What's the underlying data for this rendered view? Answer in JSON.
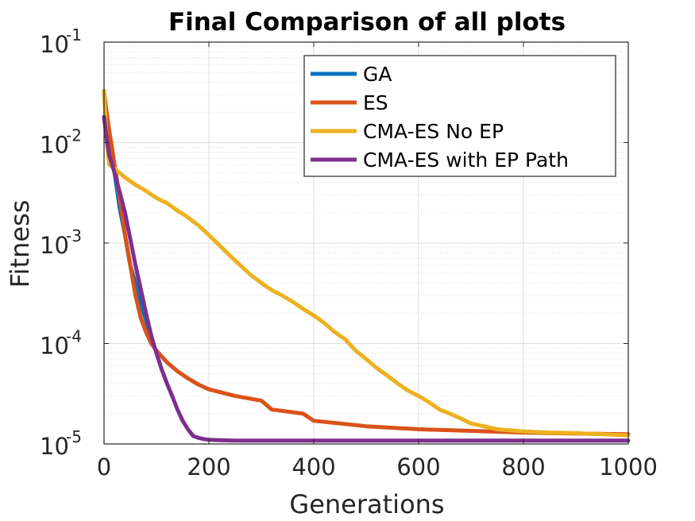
{
  "chart_data": {
    "type": "line",
    "title": "Final Comparison of all plots",
    "xlabel": "Generations",
    "ylabel": "Fitness",
    "xlim": [
      0,
      1000
    ],
    "ylim": [
      1e-05,
      0.1
    ],
    "yscale": "log",
    "grid": true,
    "minor_grid": true,
    "legend_position": "top-right",
    "x_ticks": [
      0,
      200,
      400,
      600,
      800,
      1000
    ],
    "x_tick_labels": [
      "0",
      "200",
      "400",
      "600",
      "800",
      "1000"
    ],
    "y_ticks": [
      1e-05,
      0.0001,
      0.001,
      0.01,
      0.1
    ],
    "y_tick_labels": [
      {
        "base": "10",
        "exp": "-5"
      },
      {
        "base": "10",
        "exp": "-4"
      },
      {
        "base": "10",
        "exp": "-3"
      },
      {
        "base": "10",
        "exp": "-2"
      },
      {
        "base": "10",
        "exp": "-1"
      }
    ],
    "series": [
      {
        "name": "GA",
        "color": "#0072BD",
        "x": [
          0,
          5,
          10,
          20,
          30,
          40,
          50,
          60,
          70,
          80,
          85,
          90,
          92
        ],
        "y": [
          0.03,
          0.018,
          0.008,
          0.005,
          0.0022,
          0.0012,
          0.0006,
          0.0004,
          0.00025,
          0.00017,
          0.00014,
          0.00012,
          0.00011
        ]
      },
      {
        "name": "ES",
        "color": "#D95319",
        "x": [
          0,
          5,
          10,
          15,
          20,
          30,
          40,
          50,
          60,
          70,
          80,
          90,
          100,
          120,
          140,
          160,
          180,
          200,
          250,
          300,
          320,
          350,
          380,
          400,
          450,
          500,
          550,
          600,
          700,
          800,
          900,
          1000
        ],
        "y": [
          0.032,
          0.02,
          0.013,
          0.009,
          0.006,
          0.0028,
          0.0012,
          0.0006,
          0.0003,
          0.00018,
          0.00013,
          0.0001,
          8.5e-05,
          6.5e-05,
          5.3e-05,
          4.5e-05,
          3.9e-05,
          3.5e-05,
          3e-05,
          2.7e-05,
          2.2e-05,
          2.1e-05,
          2e-05,
          1.7e-05,
          1.6e-05,
          1.5e-05,
          1.45e-05,
          1.4e-05,
          1.35e-05,
          1.3e-05,
          1.27e-05,
          1.25e-05
        ]
      },
      {
        "name": "CMA-ES No EP",
        "color": "#EDB120",
        "x": [
          0,
          3,
          6,
          10,
          20,
          40,
          60,
          80,
          100,
          120,
          140,
          160,
          180,
          200,
          220,
          240,
          260,
          280,
          300,
          320,
          340,
          360,
          380,
          400,
          420,
          440,
          460,
          480,
          500,
          520,
          540,
          560,
          580,
          600,
          620,
          640,
          660,
          680,
          700,
          750,
          800,
          850,
          900,
          950,
          1000
        ],
        "y": [
          0.033,
          0.016,
          0.009,
          0.006,
          0.0055,
          0.0045,
          0.0038,
          0.0033,
          0.0028,
          0.0025,
          0.0021,
          0.0018,
          0.0015,
          0.0012,
          0.00095,
          0.00075,
          0.0006,
          0.00048,
          0.0004,
          0.00034,
          0.0003,
          0.00026,
          0.00022,
          0.00019,
          0.00016,
          0.00013,
          0.00011,
          8.5e-05,
          7e-05,
          5.7e-05,
          4.8e-05,
          4e-05,
          3.4e-05,
          3e-05,
          2.6e-05,
          2.2e-05,
          2e-05,
          1.8e-05,
          1.6e-05,
          1.4e-05,
          1.33e-05,
          1.3e-05,
          1.28e-05,
          1.25e-05,
          1.22e-05
        ]
      },
      {
        "name": "CMA-ES with EP Path",
        "color": "#7E2F8E",
        "x": [
          0,
          5,
          10,
          20,
          30,
          40,
          50,
          60,
          70,
          80,
          90,
          100,
          110,
          120,
          130,
          140,
          150,
          160,
          170,
          180,
          190,
          200,
          220,
          250,
          300,
          400,
          500,
          600,
          700,
          800,
          900,
          1000
        ],
        "y": [
          0.018,
          0.011,
          0.0075,
          0.005,
          0.0032,
          0.002,
          0.0011,
          0.0006,
          0.00035,
          0.0002,
          0.00012,
          8e-05,
          5.5e-05,
          4e-05,
          3e-05,
          2.2e-05,
          1.7e-05,
          1.4e-05,
          1.2e-05,
          1.15e-05,
          1.12e-05,
          1.1e-05,
          1.09e-05,
          1.08e-05,
          1.08e-05,
          1.08e-05,
          1.08e-05,
          1.08e-05,
          1.08e-05,
          1.08e-05,
          1.08e-05,
          1.08e-05
        ]
      }
    ]
  }
}
